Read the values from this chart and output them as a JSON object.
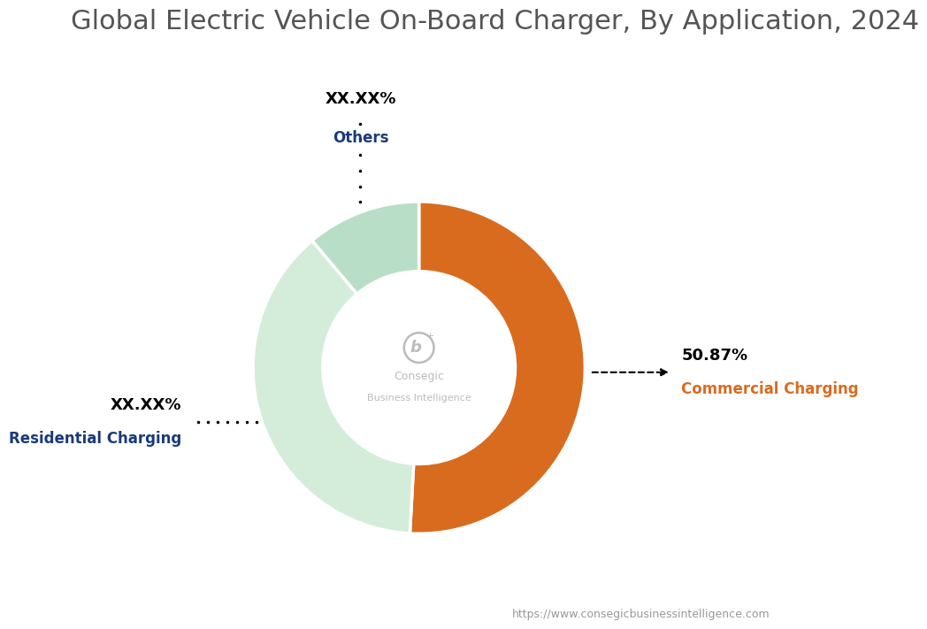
{
  "title": "Global Electric Vehicle On-Board Charger, By Application, 2024",
  "title_color": "#555555",
  "title_fontsize": 22,
  "segments": [
    {
      "label": "Commercial Charging",
      "value": 50.87,
      "color": "#D96B1F",
      "pct_text": "50.87%",
      "label_color": "#D96B1F"
    },
    {
      "label": "Residential Charging",
      "value": 38.0,
      "color": "#D4EDDA",
      "pct_text": "XX.XX%",
      "label_color": "#1A3A7A"
    },
    {
      "label": "Others",
      "value": 11.13,
      "color": "#B8DEC8",
      "pct_text": "XX.XX%",
      "label_color": "#1A3A7A"
    }
  ],
  "background_color": "#FFFFFF",
  "donut_width": 0.42,
  "watermark": "https://www.consegicbusinessintelligence.com",
  "logo_text_line1": "Consegic",
  "logo_text_line2": "Business Intelligence",
  "logo_color": "#BBBBBB",
  "logo_icon_color": "#CCCCCC"
}
